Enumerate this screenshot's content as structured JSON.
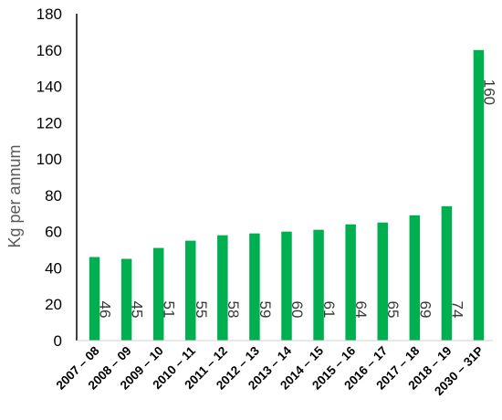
{
  "chart_data": {
    "type": "bar",
    "categories": [
      "2007 – 08",
      "2008 – 09",
      "2009 – 10",
      "2010 – 11",
      "2011 – 12",
      "2012 – 13",
      "2013 – 14",
      "2014 – 15",
      "2015 – 16",
      "2016 – 17",
      "2017 – 18",
      "2018 – 19",
      "2030 – 31P"
    ],
    "values": [
      46,
      45,
      51,
      55,
      58,
      59,
      60,
      61,
      64,
      65,
      69,
      74,
      160
    ],
    "title": "",
    "xlabel": "",
    "ylabel": "Kg per annum",
    "ylim": [
      0,
      180
    ],
    "yticks": [
      0,
      20,
      40,
      60,
      80,
      100,
      120,
      140,
      160,
      180
    ],
    "grid": false,
    "legend": "none",
    "bar_color": "#00b050",
    "data_label_orientation": "vertical"
  }
}
